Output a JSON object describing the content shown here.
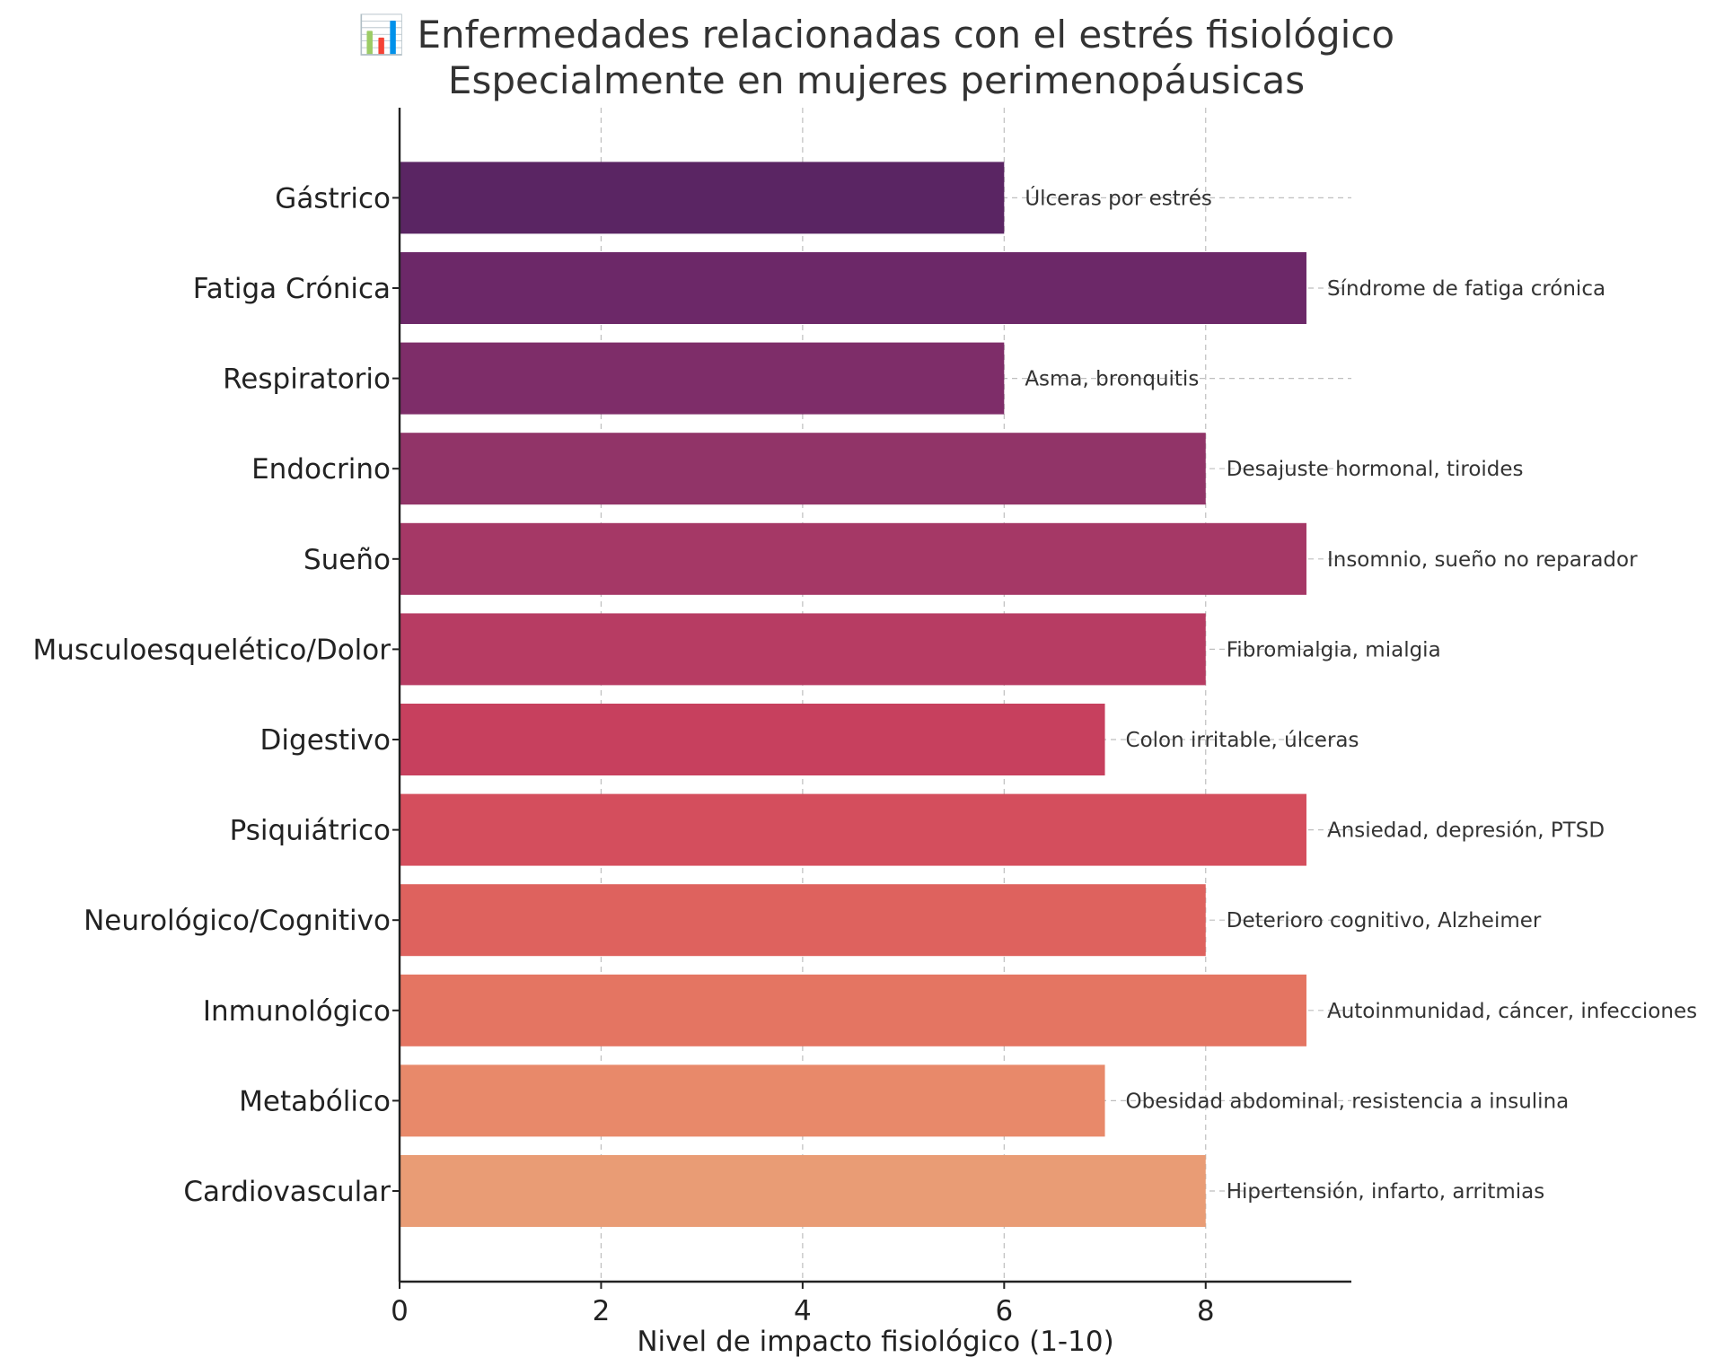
{
  "chart_data": {
    "type": "bar",
    "orientation": "horizontal",
    "title": "📊 Enfermedades relacionadas con el estrés fisiológico",
    "subtitle": "Especialmente en mujeres perimenopáusicas",
    "xlabel": "Nivel de impacto fisiológico (1-10)",
    "ylabel": "",
    "xlim": [
      0,
      9.45
    ],
    "xticks": [
      0,
      2,
      4,
      6,
      8
    ],
    "grid": true,
    "categories": [
      "Cardiovascular",
      "Metabólico",
      "Inmunológico",
      "Neurológico/Cognitivo",
      "Psiquiátrico",
      "Digestivo",
      "Musculoesquelético/Dolor",
      "Sueño",
      "Endocrino",
      "Respiratorio",
      "Fatiga Crónica",
      "Gástrico"
    ],
    "values": [
      8,
      7,
      9,
      8,
      9,
      7,
      8,
      9,
      8,
      6,
      9,
      6
    ],
    "annotations": [
      "Hipertensión, infarto, arritmias",
      "Obesidad abdominal, resistencia a insulina",
      "Autoinmunidad, cáncer, infecciones",
      "Deterioro cognitivo, Alzheimer",
      "Ansiedad, depresión, PTSD",
      "Colon irritable, úlceras",
      "Fibromialgia, mialgia",
      "Insomnio, sueño no reparador",
      "Desajuste hormonal, tiroides",
      "Asma, bronquitis",
      "Síndrome de fatiga crónica",
      "Úlceras por estrés"
    ],
    "colors": [
      "#E99C75",
      "#E8896A",
      "#E47562",
      "#DE625E",
      "#D44E5D",
      "#C7405E",
      "#B73C63",
      "#A53866",
      "#913468",
      "#7E2D69",
      "#6C2868",
      "#5A2563"
    ]
  }
}
